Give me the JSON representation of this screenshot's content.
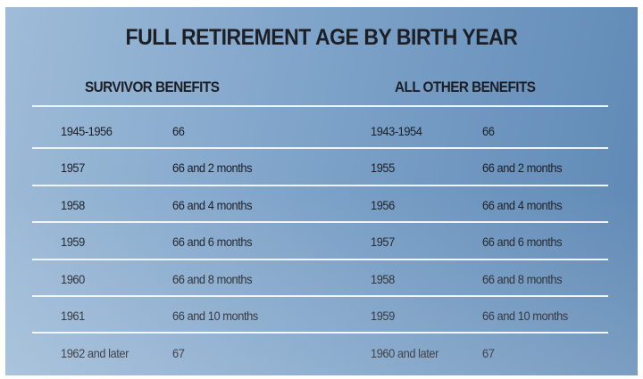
{
  "title": "FULL RETIREMENT AGE BY BIRTH YEAR",
  "survivor": {
    "heading": "SURVIVOR BENEFITS",
    "rows": [
      {
        "year": "1945-1956",
        "age": "66"
      },
      {
        "year": "1957",
        "age": "66 and 2 months"
      },
      {
        "year": "1958",
        "age": "66 and 4 months"
      },
      {
        "year": "1959",
        "age": "66 and 6 months"
      },
      {
        "year": "1960",
        "age": "66 and 8 months"
      },
      {
        "year": "1961",
        "age": "66 and 10 months"
      },
      {
        "year": "1962 and later",
        "age": "67"
      }
    ]
  },
  "other": {
    "heading": "ALL OTHER BENEFITS",
    "rows": [
      {
        "year": "1943-1954",
        "age": "66"
      },
      {
        "year": "1955",
        "age": "66 and 2 months"
      },
      {
        "year": "1956",
        "age": "66 and 4 months"
      },
      {
        "year": "1957",
        "age": "66 and 6 months"
      },
      {
        "year": "1958",
        "age": "66 and 8 months"
      },
      {
        "year": "1959",
        "age": "66 and 10 months"
      },
      {
        "year": "1960 and later",
        "age": "67"
      }
    ]
  }
}
